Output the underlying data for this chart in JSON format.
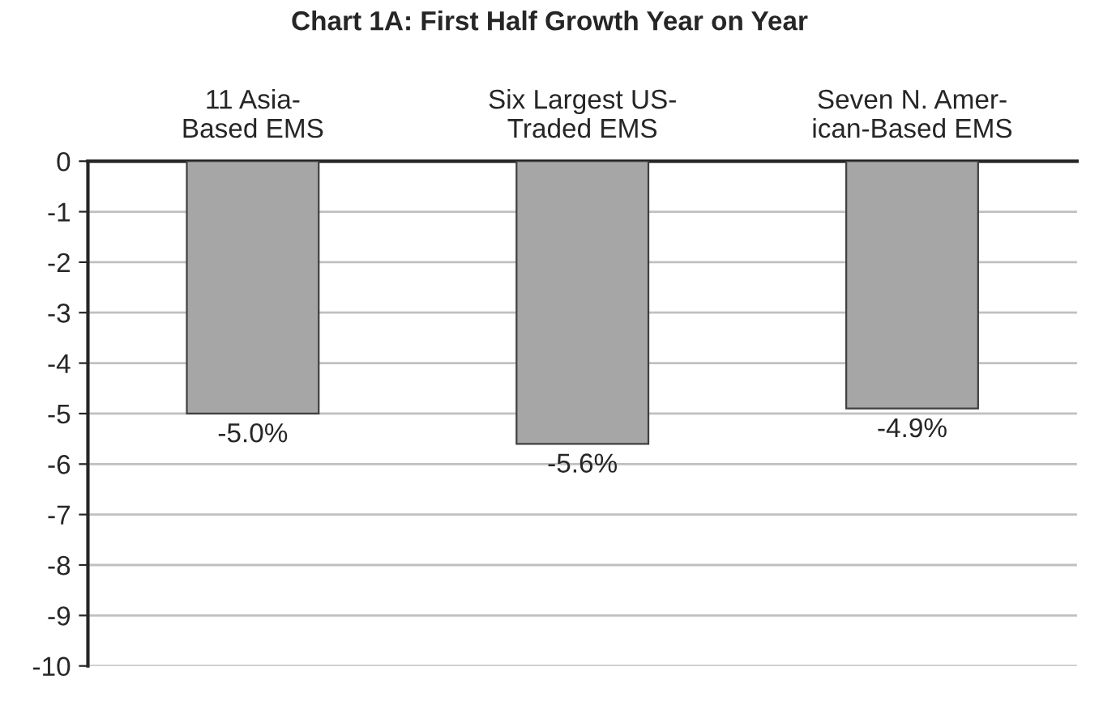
{
  "chart_data": {
    "type": "bar",
    "title": "Chart 1A: First Half Growth Year on Year",
    "categories": [
      "11 Asia-\nBased EMS",
      "Six Largest US-\nTraded EMS",
      "Seven N. Amer-\nican-Based EMS"
    ],
    "values": [
      -5.0,
      -5.6,
      -4.9
    ],
    "color": "#a6a6a6",
    "value_labels": [
      "-5.0%",
      "-5.6%",
      "-4.9%"
    ],
    "ylim": [
      -10,
      0
    ],
    "yticks": [
      -10,
      -9,
      -8,
      -7,
      -6,
      -5,
      -4,
      -3,
      -2,
      -1,
      0
    ],
    "grid": "y",
    "legend": false
  }
}
